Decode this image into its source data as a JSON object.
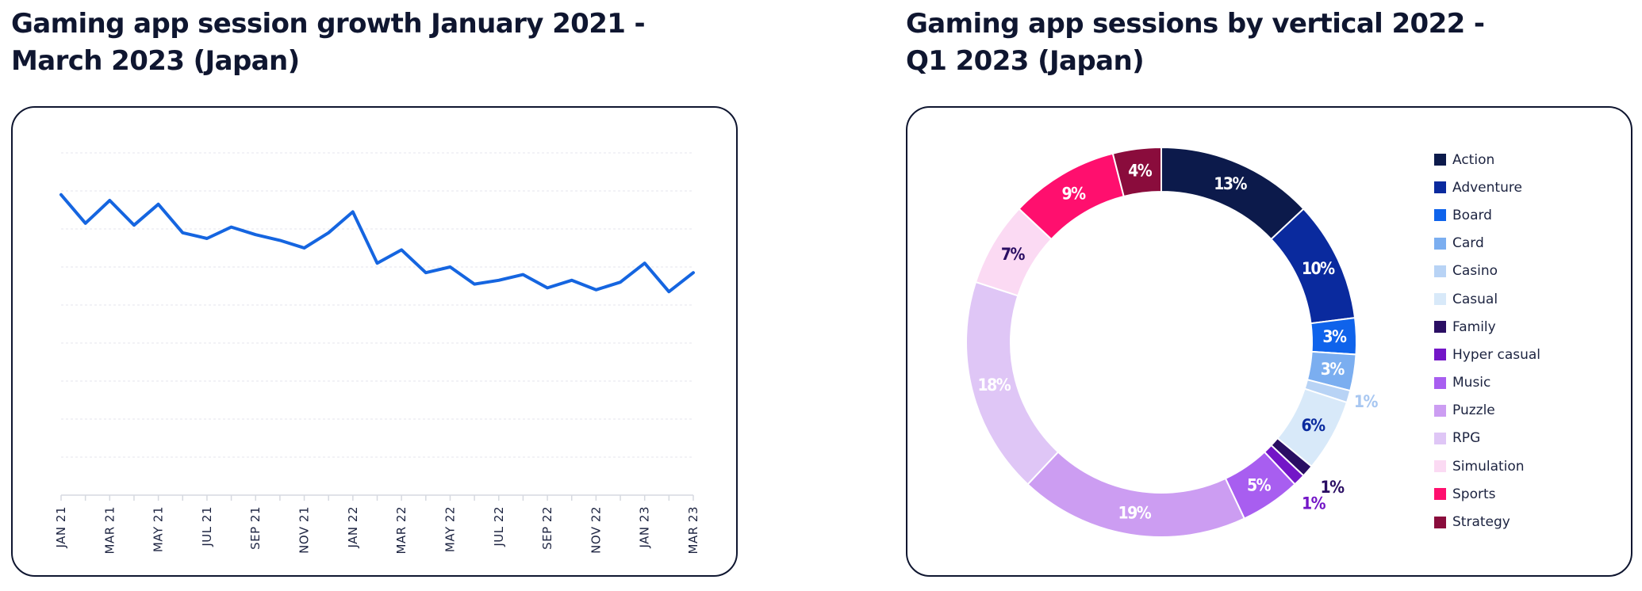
{
  "left": {
    "title": "Gaming app session growth January 2021 -\nMarch 2023 (Japan)"
  },
  "right": {
    "title": "Gaming app sessions by vertical 2022 -\nQ1 2023 (Japan)"
  },
  "chart_data": [
    {
      "type": "line",
      "title": "Gaming app session growth January 2021 - March 2023 (Japan)",
      "xlabel": "",
      "ylabel": "",
      "x": [
        "JAN 21",
        "FEB 21",
        "MAR 21",
        "APR 21",
        "MAY 21",
        "JUN 21",
        "JUL 21",
        "AUG 21",
        "SEP 21",
        "OCT 21",
        "NOV 21",
        "DEC 21",
        "JAN 22",
        "FEB 22",
        "MAR 22",
        "APR 22",
        "MAY 22",
        "JUN 22",
        "JUL 22",
        "AUG 22",
        "SEP 22",
        "OCT 22",
        "NOV 22",
        "DEC 22",
        "JAN 23",
        "FEB 23",
        "MAR 23"
      ],
      "tick_labels": [
        "JAN 21",
        "MAR 21",
        "MAY 21",
        "JUL 21",
        "SEP 21",
        "NOV 21",
        "JAN 22",
        "MAR 22",
        "MAY 22",
        "JUL 22",
        "SEP 22",
        "NOV 22",
        "JAN 23",
        "MAR 23"
      ],
      "ylim": [
        0,
        9
      ],
      "gridlines": 9,
      "grid": true,
      "y_tick_labels_shown": false,
      "color": "#1565e0",
      "series": [
        {
          "values": [
            7.9,
            7.15,
            7.75,
            7.1,
            7.65,
            6.9,
            6.75,
            7.05,
            6.85,
            6.7,
            6.5,
            6.9,
            7.45,
            6.1,
            6.45,
            5.85,
            6.0,
            5.55,
            5.65,
            5.8,
            5.45,
            5.65,
            5.4,
            5.6,
            6.1,
            5.35,
            5.85
          ]
        }
      ]
    },
    {
      "type": "pie",
      "donut": true,
      "title": "Gaming app sessions by vertical 2022 - Q1 2023 (Japan)",
      "legend_position": "right",
      "categories": [
        "Action",
        "Adventure",
        "Board",
        "Card",
        "Casino",
        "Casual",
        "Family",
        "Hyper casual",
        "Music",
        "Puzzle",
        "RPG",
        "Simulation",
        "Sports",
        "Strategy"
      ],
      "values": [
        13,
        10,
        3,
        3,
        1,
        6,
        1,
        1,
        5,
        19,
        18,
        7,
        9,
        4
      ],
      "labels": [
        "13%",
        "10%",
        "3%",
        "3%",
        "1%",
        "6%",
        "1%",
        "1%",
        "5%",
        "19%",
        "18%",
        "7%",
        "9%",
        "4%"
      ],
      "colors": [
        "#0c1a4b",
        "#0a2a9e",
        "#0f63eb",
        "#7baef0",
        "#b8d3f5",
        "#d8e9f9",
        "#2a0e63",
        "#7316c7",
        "#a85ef0",
        "#cc9df2",
        "#dfc6f6",
        "#fbdaf3",
        "#ff0f6e",
        "#8a0c3c"
      ],
      "label_colors": [
        "#ffffff",
        "#ffffff",
        "#ffffff",
        "#ffffff",
        "#a8c7f1",
        "#0a2a9e",
        "#2a0e63",
        "#7316c7",
        "#ffffff",
        "#ffffff",
        "#ffffff",
        "#2a0e63",
        "#ffffff",
        "#ffffff"
      ]
    }
  ]
}
